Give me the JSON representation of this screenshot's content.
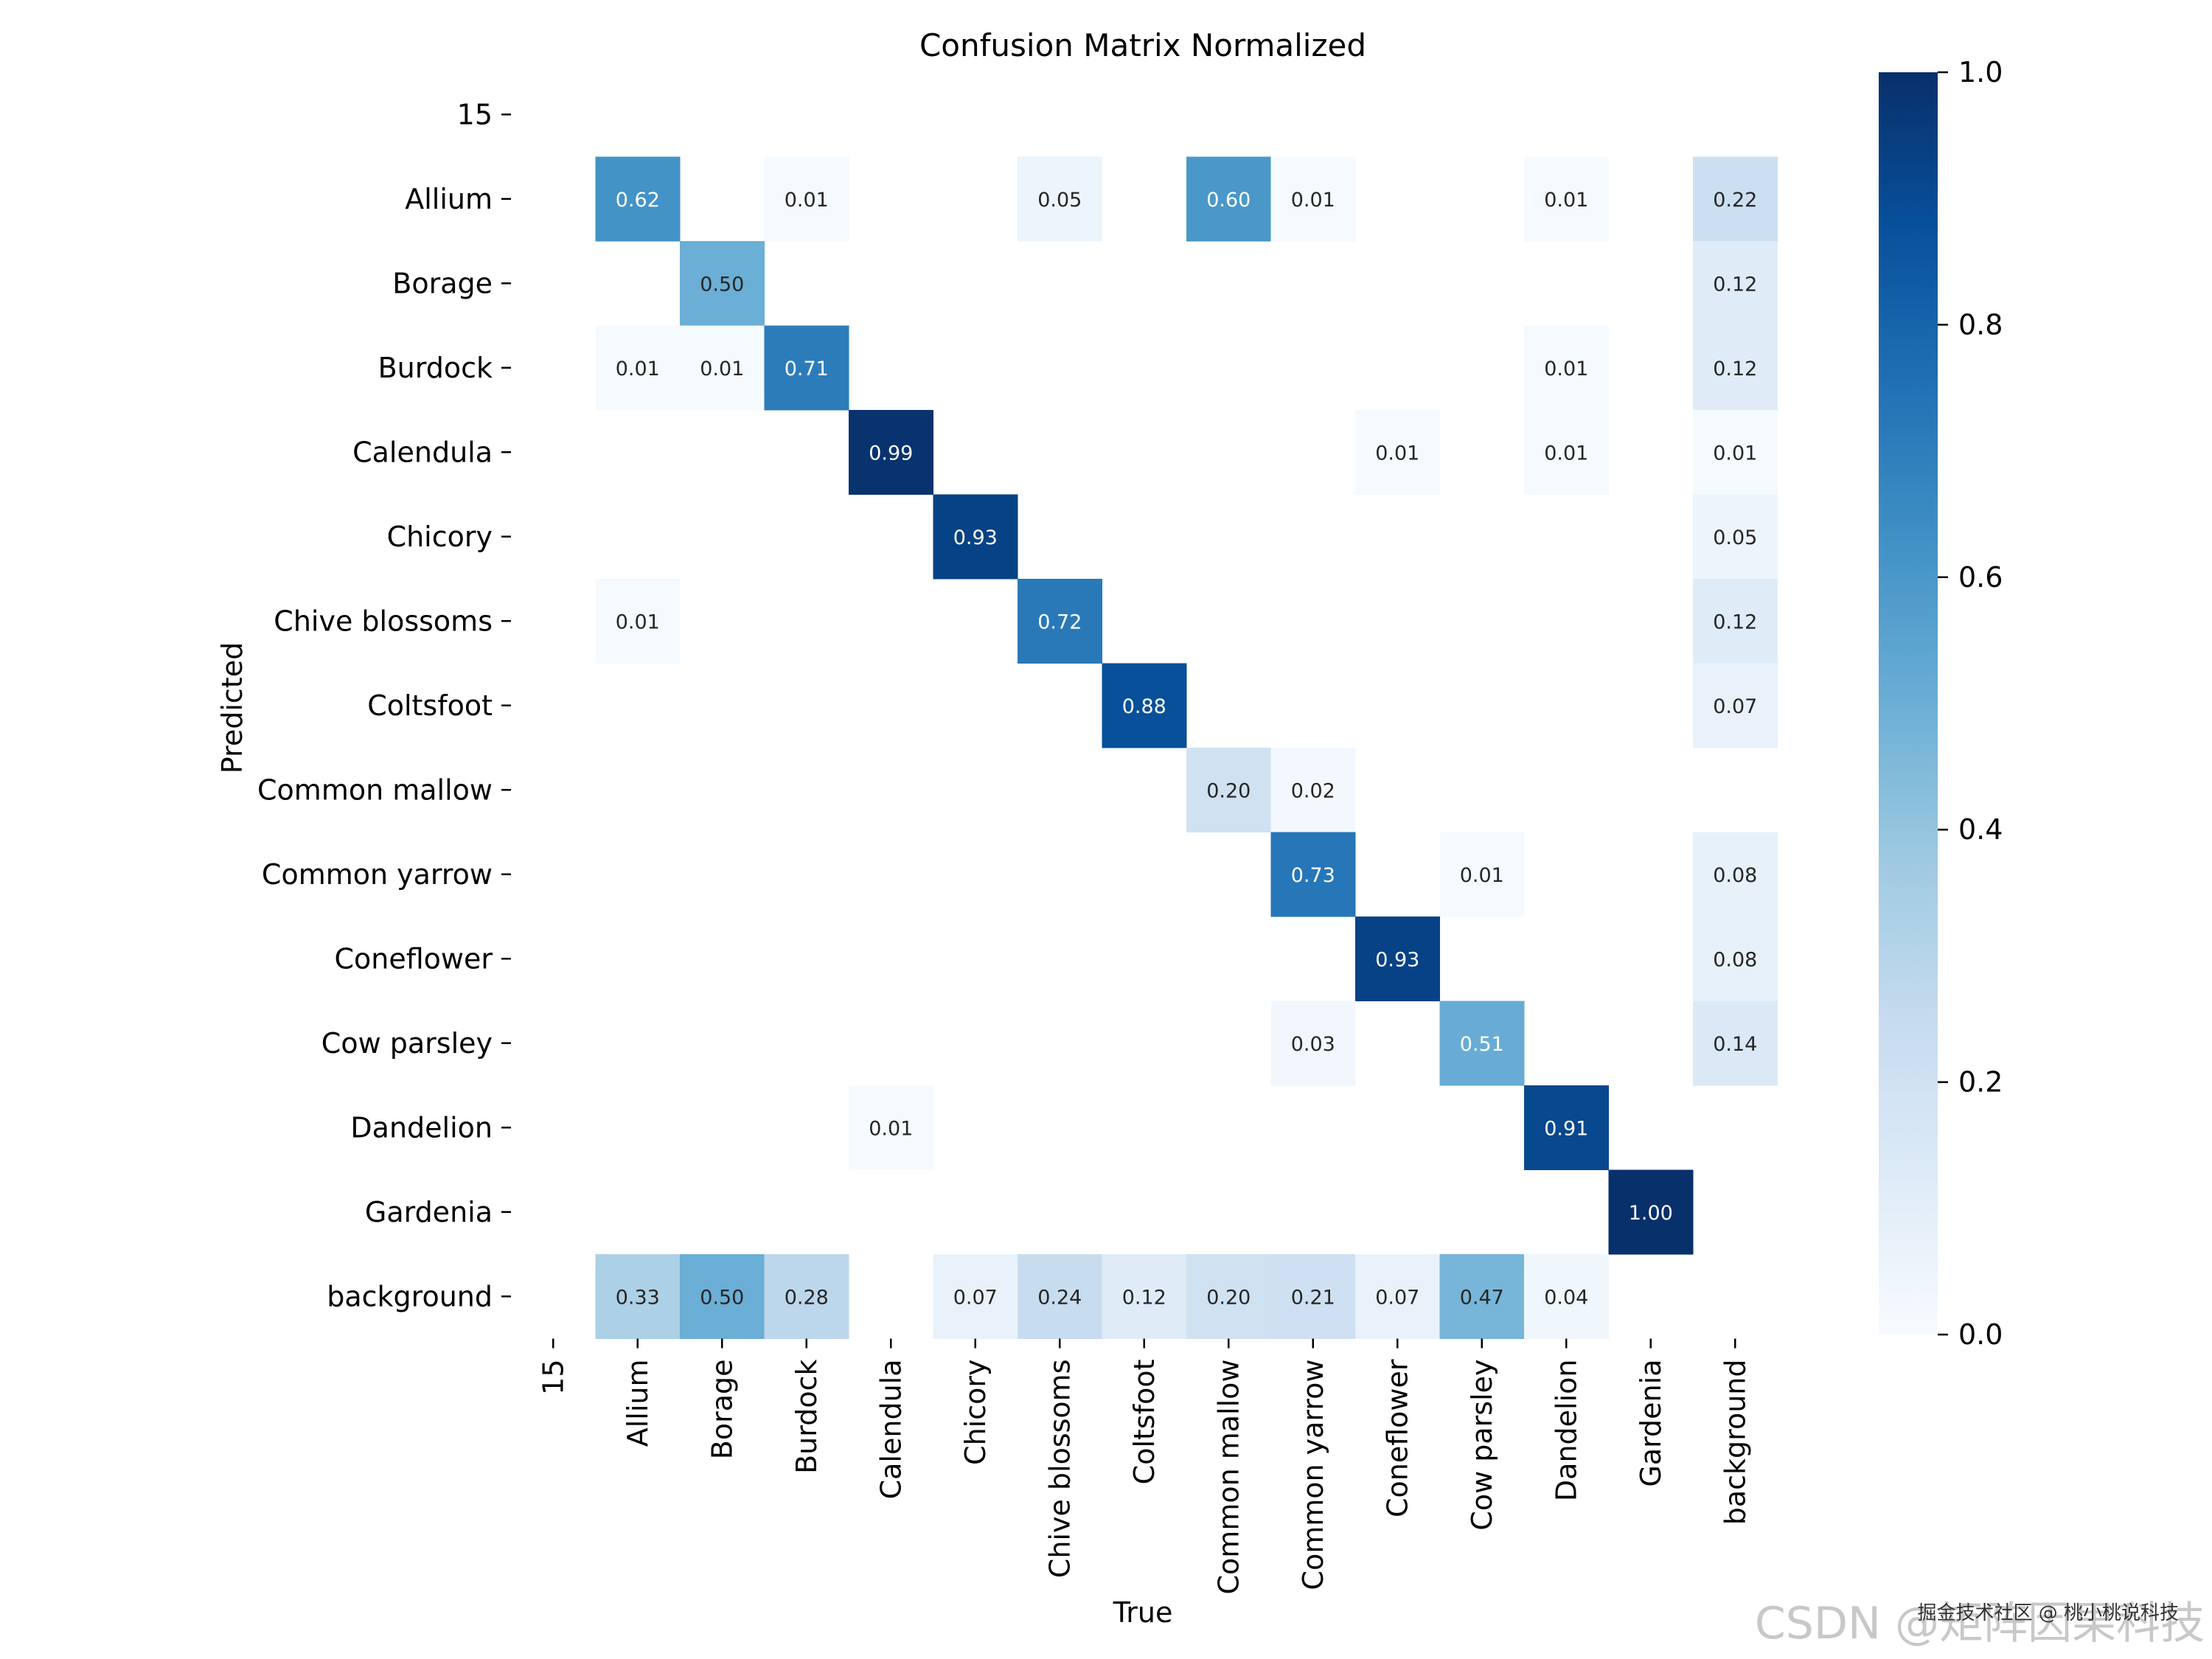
{
  "chart_data": {
    "type": "heatmap",
    "title": "Confusion Matrix Normalized",
    "xlabel": "True",
    "ylabel": "Predicted",
    "categories": [
      "15",
      "Allium",
      "Borage",
      "Burdock",
      "Calendula",
      "Chicory",
      "Chive blossoms",
      "Coltsfoot",
      "Common mallow",
      "Common yarrow",
      "Coneflower",
      "Cow parsley",
      "Dandelion",
      "Gardenia",
      "background"
    ],
    "matrix": [
      [
        null,
        null,
        null,
        null,
        null,
        null,
        null,
        null,
        null,
        null,
        null,
        null,
        null,
        null,
        null
      ],
      [
        null,
        0.62,
        null,
        0.01,
        null,
        null,
        0.05,
        null,
        0.6,
        0.01,
        null,
        null,
        0.01,
        null,
        0.22
      ],
      [
        null,
        null,
        0.5,
        null,
        null,
        null,
        null,
        null,
        null,
        null,
        null,
        null,
        null,
        null,
        0.12
      ],
      [
        null,
        0.01,
        0.01,
        0.71,
        null,
        null,
        null,
        null,
        null,
        null,
        null,
        null,
        0.01,
        null,
        0.12
      ],
      [
        null,
        null,
        null,
        null,
        0.99,
        null,
        null,
        null,
        null,
        null,
        0.01,
        null,
        0.01,
        null,
        0.01
      ],
      [
        null,
        null,
        null,
        null,
        null,
        0.93,
        null,
        null,
        null,
        null,
        null,
        null,
        null,
        null,
        0.05
      ],
      [
        null,
        0.01,
        null,
        null,
        null,
        null,
        0.72,
        null,
        null,
        null,
        null,
        null,
        null,
        null,
        0.12
      ],
      [
        null,
        null,
        null,
        null,
        null,
        null,
        null,
        0.88,
        null,
        null,
        null,
        null,
        null,
        null,
        0.07
      ],
      [
        null,
        null,
        null,
        null,
        null,
        null,
        null,
        null,
        0.2,
        0.02,
        null,
        null,
        null,
        null,
        null
      ],
      [
        null,
        null,
        null,
        null,
        null,
        null,
        null,
        null,
        null,
        0.73,
        null,
        0.01,
        null,
        null,
        0.08
      ],
      [
        null,
        null,
        null,
        null,
        null,
        null,
        null,
        null,
        null,
        null,
        0.93,
        null,
        null,
        null,
        0.08
      ],
      [
        null,
        null,
        null,
        null,
        null,
        null,
        null,
        null,
        null,
        0.03,
        null,
        0.51,
        null,
        null,
        0.14
      ],
      [
        null,
        null,
        null,
        null,
        0.01,
        null,
        null,
        null,
        null,
        null,
        null,
        null,
        0.91,
        null,
        null
      ],
      [
        null,
        null,
        null,
        null,
        null,
        null,
        null,
        null,
        null,
        null,
        null,
        null,
        null,
        1.0,
        null
      ],
      [
        null,
        0.33,
        0.5,
        0.28,
        null,
        0.07,
        0.24,
        0.12,
        0.2,
        0.21,
        0.07,
        0.47,
        0.04,
        null,
        null
      ]
    ],
    "colorscale": "Blues",
    "vmin": 0.0,
    "vmax": 1.0,
    "colorbar_ticks": [
      "0.0",
      "0.2",
      "0.4",
      "0.6",
      "0.8",
      "1.0"
    ],
    "grid": false,
    "legend": "colorbar-right"
  },
  "watermark": {
    "light": "CSDN @矩阵因果科技",
    "dark": "掘金技术社区 @ 桃小桃说科技"
  },
  "colors": {
    "low": "#f7fbff",
    "high": "#08306b"
  }
}
